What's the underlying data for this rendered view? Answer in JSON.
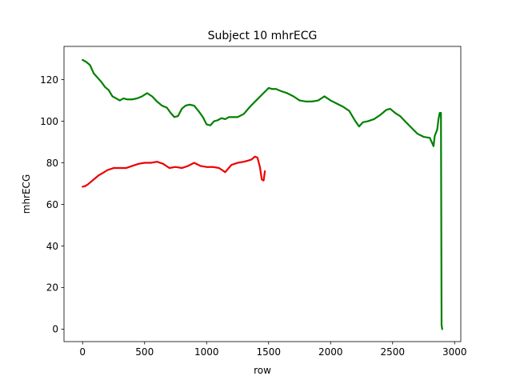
{
  "chart_data": {
    "type": "line",
    "title": "Subject 10 mhrECG",
    "xlabel": "row",
    "ylabel": "mhrECG",
    "xlim": [
      -150,
      3050
    ],
    "ylim": [
      -6,
      136
    ],
    "xticks": [
      0,
      500,
      1000,
      1500,
      2000,
      2500,
      3000
    ],
    "yticks": [
      0,
      20,
      40,
      60,
      80,
      100,
      120
    ],
    "grid": false,
    "legend": "none",
    "series": [
      {
        "color": "#008000",
        "x": [
          0,
          30,
          60,
          90,
          120,
          150,
          180,
          210,
          240,
          270,
          300,
          330,
          360,
          400,
          440,
          480,
          520,
          560,
          600,
          640,
          680,
          710,
          740,
          770,
          800,
          830,
          860,
          900,
          940,
          970,
          1000,
          1030,
          1060,
          1090,
          1120,
          1150,
          1180,
          1210,
          1250,
          1300,
          1350,
          1400,
          1450,
          1500,
          1530,
          1560,
          1600,
          1650,
          1700,
          1750,
          1800,
          1850,
          1900,
          1950,
          2000,
          2050,
          2100,
          2150,
          2200,
          2230,
          2260,
          2300,
          2350,
          2400,
          2450,
          2480,
          2520,
          2560,
          2600,
          2650,
          2700,
          2750,
          2800,
          2830,
          2840,
          2860,
          2870,
          2880,
          2890,
          2895,
          2900
        ],
        "y": [
          129.5,
          128.5,
          127,
          123,
          121,
          119,
          116.5,
          115,
          112,
          111,
          110,
          111,
          110.5,
          110.5,
          111,
          112,
          113.5,
          112,
          109.5,
          107.5,
          106.5,
          104,
          102,
          102.5,
          106,
          107.5,
          108,
          107.5,
          104.5,
          102,
          98.5,
          98,
          100,
          100.5,
          101.5,
          101,
          102,
          102,
          102,
          103.5,
          107,
          110,
          113,
          116,
          115.5,
          115.5,
          114.5,
          113.5,
          112,
          110,
          109.5,
          109.5,
          110,
          112,
          110,
          108.5,
          107,
          105,
          100,
          97.5,
          99.5,
          100,
          101,
          103,
          105.5,
          106,
          104,
          102.5,
          100,
          97,
          94,
          92.5,
          92,
          88,
          93,
          96,
          101,
          104,
          104,
          2,
          0
        ]
      },
      {
        "color": "#ee0000",
        "x": [
          0,
          20,
          40,
          60,
          80,
          100,
          130,
          160,
          200,
          250,
          300,
          350,
          400,
          450,
          500,
          550,
          600,
          650,
          700,
          750,
          800,
          850,
          900,
          950,
          1000,
          1050,
          1100,
          1150,
          1200,
          1250,
          1300,
          1330,
          1360,
          1390,
          1410,
          1430,
          1445,
          1460,
          1470
        ],
        "y": [
          68.5,
          68.8,
          69.5,
          70.5,
          71.5,
          72.5,
          74,
          75,
          76.5,
          77.5,
          77.5,
          77.5,
          78.5,
          79.5,
          80,
          80,
          80.5,
          79.5,
          77.5,
          78,
          77.5,
          78.5,
          80,
          78.5,
          78,
          78,
          77.5,
          75.5,
          79,
          80,
          80.5,
          81,
          81.5,
          83,
          82.5,
          78,
          72,
          71.5,
          76
        ]
      }
    ]
  }
}
